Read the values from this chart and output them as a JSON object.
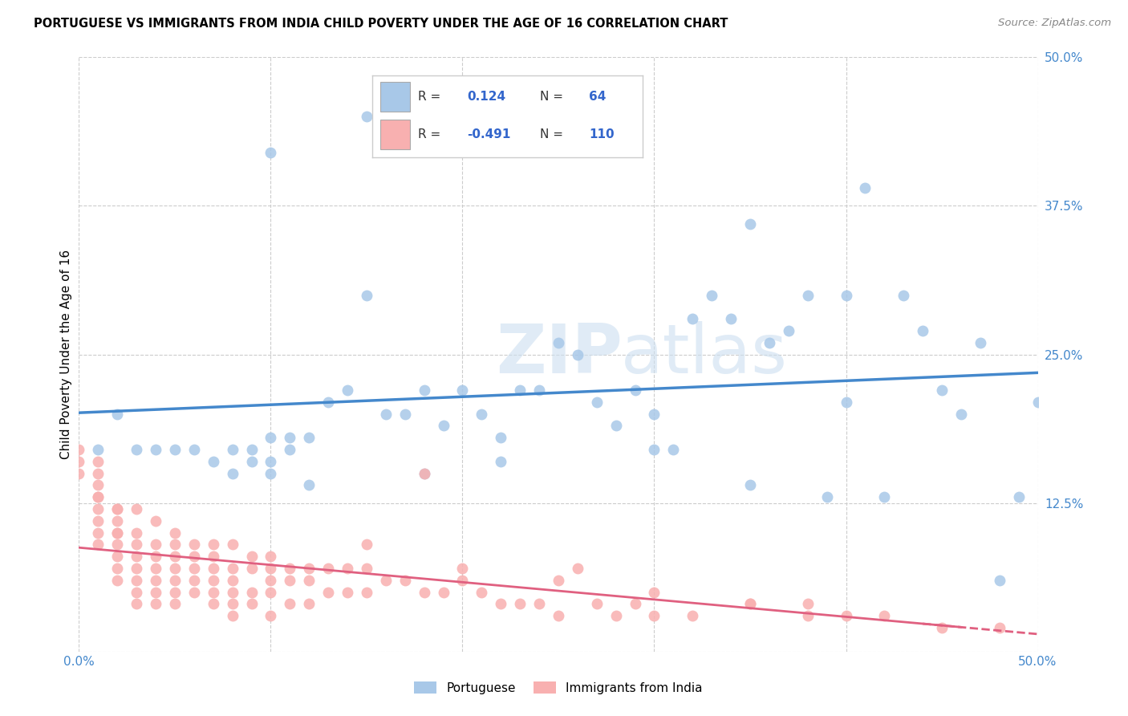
{
  "title": "PORTUGUESE VS IMMIGRANTS FROM INDIA CHILD POVERTY UNDER THE AGE OF 16 CORRELATION CHART",
  "source": "Source: ZipAtlas.com",
  "ylabel": "Child Poverty Under the Age of 16",
  "x_min": 0.0,
  "x_max": 0.5,
  "y_min": 0.0,
  "y_max": 0.5,
  "y_tick_labels_right": [
    "50.0%",
    "37.5%",
    "25.0%",
    "12.5%",
    ""
  ],
  "y_tick_positions_right": [
    0.5,
    0.375,
    0.25,
    0.125,
    0.0
  ],
  "R_blue": "0.124",
  "N_blue": "64",
  "R_pink": "-0.491",
  "N_pink": "110",
  "color_blue": "#a8c8e8",
  "color_blue_line": "#4488cc",
  "color_pink": "#f8b0b0",
  "color_pink_line": "#e06080",
  "color_pink_line_dash": "#e06080",
  "watermark_zip": "ZIP",
  "watermark_atlas": "atlas",
  "legend_label_blue": "Portuguese",
  "legend_label_pink": "Immigrants from India",
  "blue_x": [
    0.01,
    0.02,
    0.03,
    0.04,
    0.05,
    0.06,
    0.07,
    0.08,
    0.08,
    0.09,
    0.09,
    0.1,
    0.1,
    0.1,
    0.11,
    0.11,
    0.12,
    0.12,
    0.13,
    0.14,
    0.15,
    0.16,
    0.17,
    0.18,
    0.19,
    0.2,
    0.21,
    0.22,
    0.23,
    0.24,
    0.25,
    0.26,
    0.27,
    0.28,
    0.29,
    0.3,
    0.31,
    0.32,
    0.33,
    0.34,
    0.35,
    0.36,
    0.37,
    0.38,
    0.39,
    0.4,
    0.41,
    0.42,
    0.43,
    0.44,
    0.45,
    0.46,
    0.47,
    0.48,
    0.49,
    0.5,
    0.25,
    0.15,
    0.35,
    0.1,
    0.4,
    0.3,
    0.22,
    0.18
  ],
  "blue_y": [
    0.17,
    0.2,
    0.17,
    0.17,
    0.17,
    0.17,
    0.16,
    0.15,
    0.17,
    0.16,
    0.17,
    0.16,
    0.18,
    0.15,
    0.17,
    0.18,
    0.14,
    0.18,
    0.21,
    0.22,
    0.3,
    0.2,
    0.2,
    0.22,
    0.19,
    0.22,
    0.2,
    0.18,
    0.22,
    0.22,
    0.44,
    0.25,
    0.21,
    0.19,
    0.22,
    0.17,
    0.17,
    0.28,
    0.3,
    0.28,
    0.14,
    0.26,
    0.27,
    0.3,
    0.13,
    0.3,
    0.39,
    0.13,
    0.3,
    0.27,
    0.22,
    0.2,
    0.26,
    0.06,
    0.13,
    0.21,
    0.26,
    0.45,
    0.36,
    0.42,
    0.21,
    0.2,
    0.16,
    0.15
  ],
  "pink_x": [
    0.0,
    0.0,
    0.0,
    0.01,
    0.01,
    0.01,
    0.01,
    0.01,
    0.01,
    0.01,
    0.01,
    0.01,
    0.02,
    0.02,
    0.02,
    0.02,
    0.02,
    0.02,
    0.02,
    0.02,
    0.02,
    0.03,
    0.03,
    0.03,
    0.03,
    0.03,
    0.03,
    0.03,
    0.03,
    0.04,
    0.04,
    0.04,
    0.04,
    0.04,
    0.04,
    0.04,
    0.05,
    0.05,
    0.05,
    0.05,
    0.05,
    0.05,
    0.05,
    0.06,
    0.06,
    0.06,
    0.06,
    0.06,
    0.07,
    0.07,
    0.07,
    0.07,
    0.07,
    0.07,
    0.08,
    0.08,
    0.08,
    0.08,
    0.08,
    0.08,
    0.09,
    0.09,
    0.09,
    0.09,
    0.1,
    0.1,
    0.1,
    0.1,
    0.1,
    0.11,
    0.11,
    0.11,
    0.12,
    0.12,
    0.12,
    0.13,
    0.13,
    0.14,
    0.14,
    0.15,
    0.15,
    0.16,
    0.17,
    0.18,
    0.18,
    0.19,
    0.2,
    0.21,
    0.22,
    0.23,
    0.24,
    0.25,
    0.26,
    0.27,
    0.28,
    0.29,
    0.3,
    0.32,
    0.35,
    0.38,
    0.15,
    0.2,
    0.25,
    0.3,
    0.35,
    0.38,
    0.4,
    0.42,
    0.45,
    0.48
  ],
  "pink_y": [
    0.15,
    0.17,
    0.16,
    0.13,
    0.15,
    0.14,
    0.12,
    0.13,
    0.11,
    0.16,
    0.1,
    0.09,
    0.12,
    0.11,
    0.1,
    0.12,
    0.09,
    0.08,
    0.1,
    0.07,
    0.06,
    0.12,
    0.1,
    0.08,
    0.07,
    0.06,
    0.05,
    0.04,
    0.09,
    0.11,
    0.09,
    0.08,
    0.07,
    0.06,
    0.05,
    0.04,
    0.1,
    0.09,
    0.08,
    0.07,
    0.06,
    0.05,
    0.04,
    0.09,
    0.08,
    0.07,
    0.06,
    0.05,
    0.09,
    0.08,
    0.07,
    0.06,
    0.05,
    0.04,
    0.09,
    0.07,
    0.06,
    0.05,
    0.04,
    0.03,
    0.08,
    0.07,
    0.05,
    0.04,
    0.08,
    0.07,
    0.06,
    0.05,
    0.03,
    0.07,
    0.06,
    0.04,
    0.07,
    0.06,
    0.04,
    0.07,
    0.05,
    0.07,
    0.05,
    0.07,
    0.05,
    0.06,
    0.06,
    0.15,
    0.05,
    0.05,
    0.06,
    0.05,
    0.04,
    0.04,
    0.04,
    0.03,
    0.07,
    0.04,
    0.03,
    0.04,
    0.03,
    0.03,
    0.04,
    0.03,
    0.09,
    0.07,
    0.06,
    0.05,
    0.04,
    0.04,
    0.03,
    0.03,
    0.02,
    0.02
  ]
}
